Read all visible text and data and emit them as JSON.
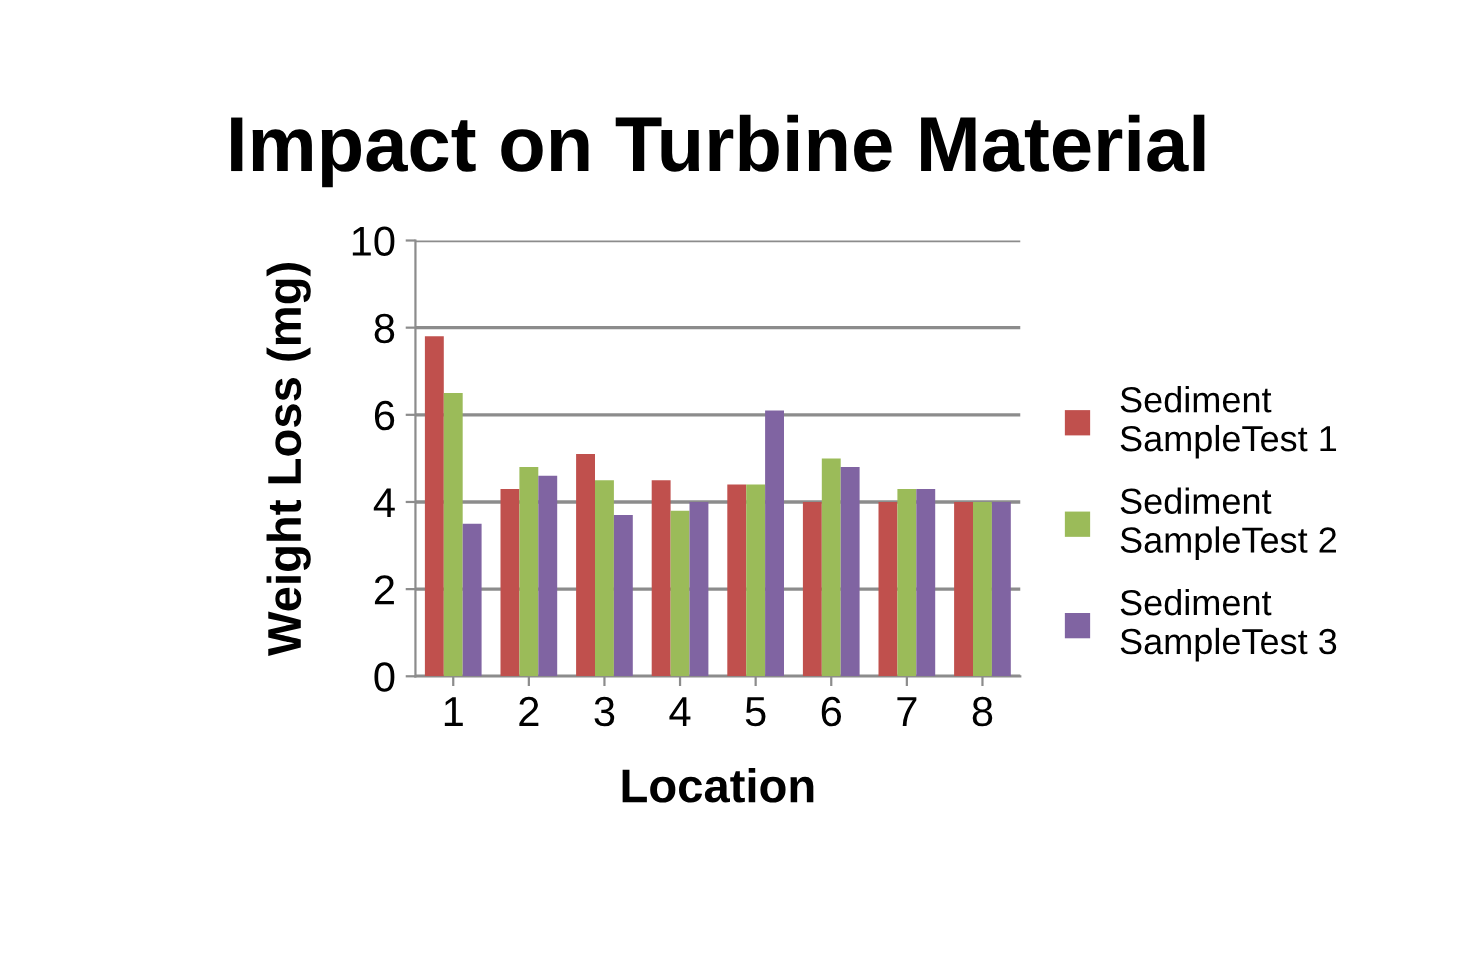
{
  "chart_data": {
    "type": "bar",
    "title": "Impact on Turbine Material",
    "xlabel": "Location",
    "ylabel": "Weight Loss (mg)",
    "categories": [
      "1",
      "2",
      "3",
      "4",
      "5",
      "6",
      "7",
      "8"
    ],
    "series": [
      {
        "name": "Sediment SampleTest 1",
        "color": "#c0504d",
        "values": [
          7.8,
          4.3,
          5.1,
          4.5,
          4.4,
          4.0,
          4.0,
          4.0
        ]
      },
      {
        "name": "Sediment SampleTest 2",
        "color": "#9bbb59",
        "values": [
          6.5,
          4.8,
          4.5,
          3.8,
          4.4,
          5.0,
          4.3,
          4.0
        ]
      },
      {
        "name": "Sediment SampleTest 3",
        "color": "#8064a2",
        "values": [
          3.5,
          4.6,
          3.7,
          4.0,
          6.1,
          4.8,
          4.3,
          4.0
        ]
      }
    ],
    "ylim": [
      0,
      10
    ],
    "yticks": [
      0,
      2,
      4,
      6,
      8,
      10
    ],
    "grid": "y",
    "legend": "right"
  }
}
